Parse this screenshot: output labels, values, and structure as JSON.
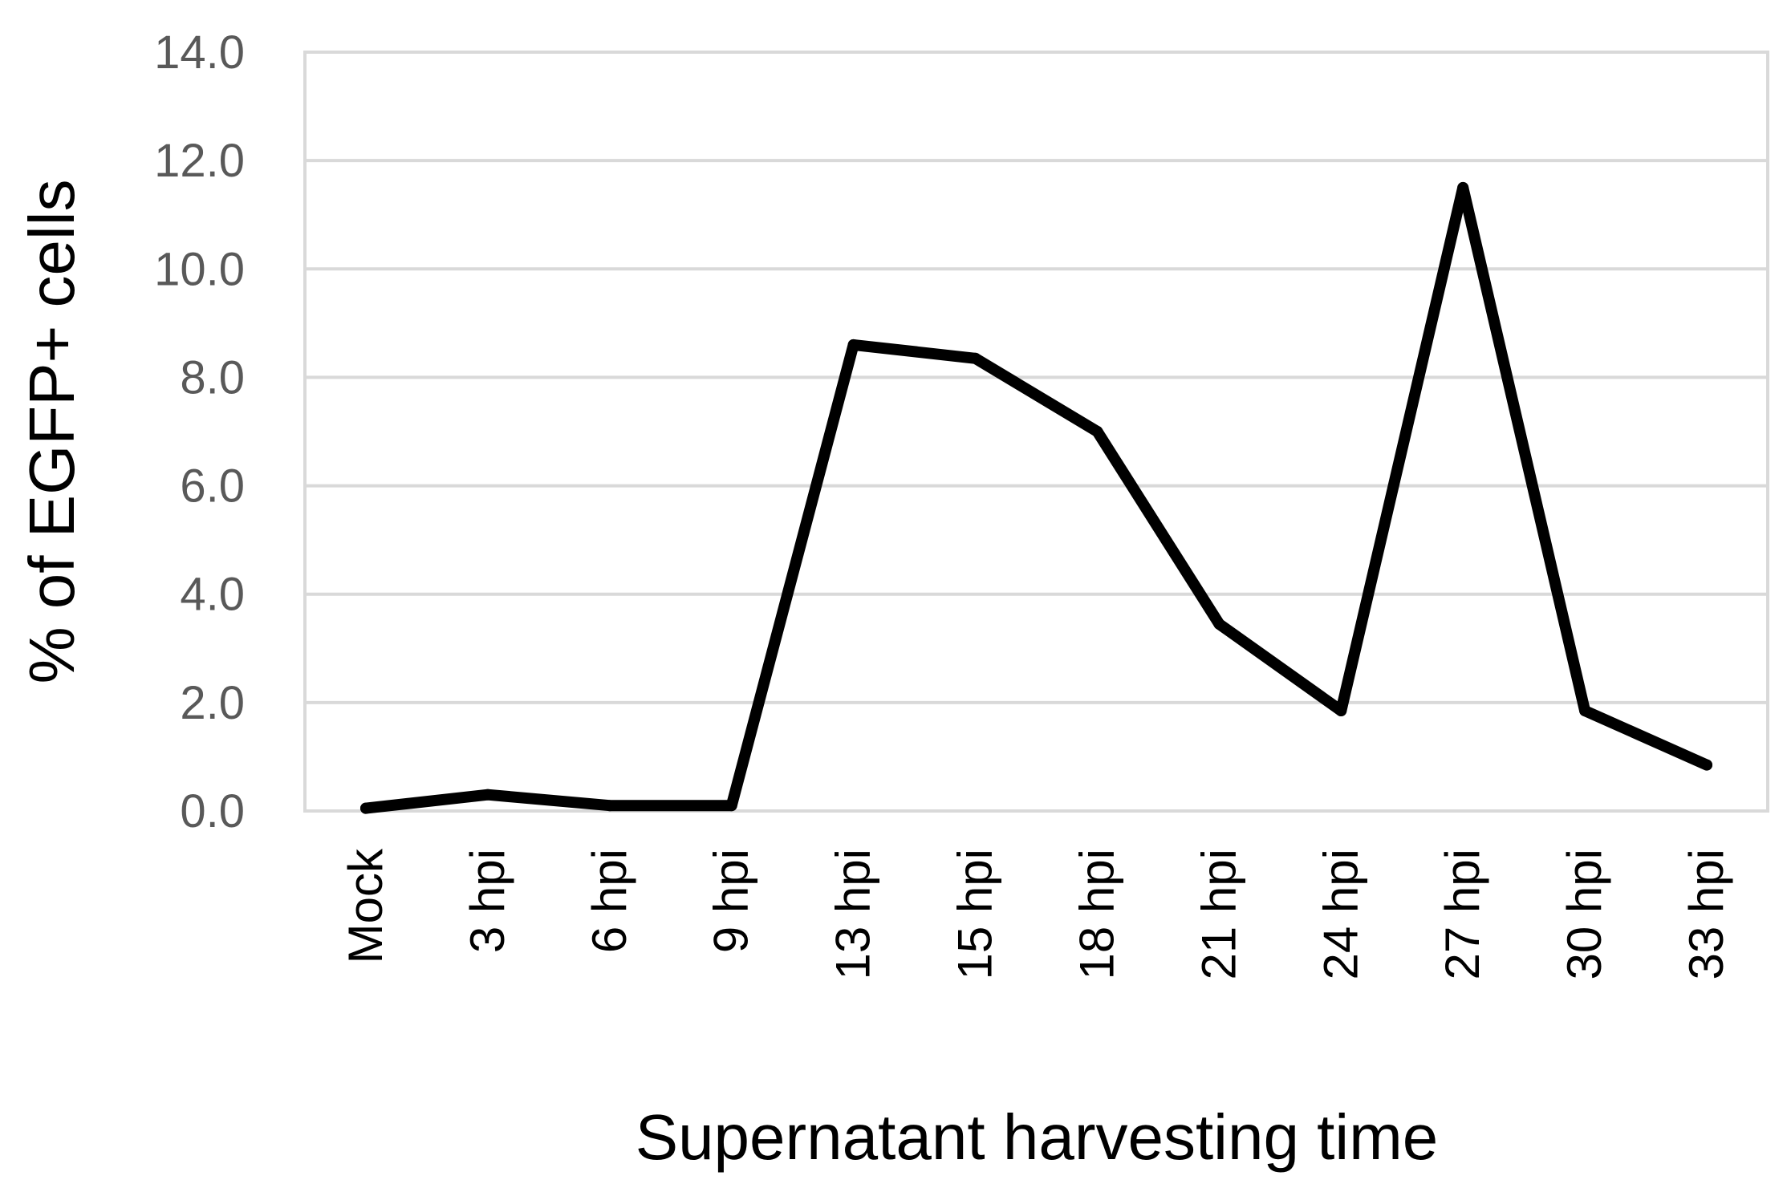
{
  "chart_data": {
    "type": "line",
    "categories": [
      "Mock",
      "3 hpi",
      "6 hpi",
      "9 hpi",
      "13 hpi",
      "15 hpi",
      "18 hpi",
      "21 hpi",
      "24 hpi",
      "27 hpi",
      "30 hpi",
      "33 hpi"
    ],
    "series": [
      {
        "values": [
          0.05,
          0.3,
          0.1,
          0.1,
          8.6,
          8.35,
          7.0,
          3.45,
          1.85,
          11.5,
          1.85,
          0.85
        ],
        "color": "#000000"
      }
    ],
    "xlabel": "Supernatant harvesting time",
    "ylabel": "% of EGFP+ cells",
    "ylim": [
      0,
      14
    ],
    "yticks": [
      "0.0",
      "2.0",
      "4.0",
      "6.0",
      "8.0",
      "10.0",
      "12.0",
      "14.0"
    ],
    "grid": true,
    "legend": "none"
  }
}
